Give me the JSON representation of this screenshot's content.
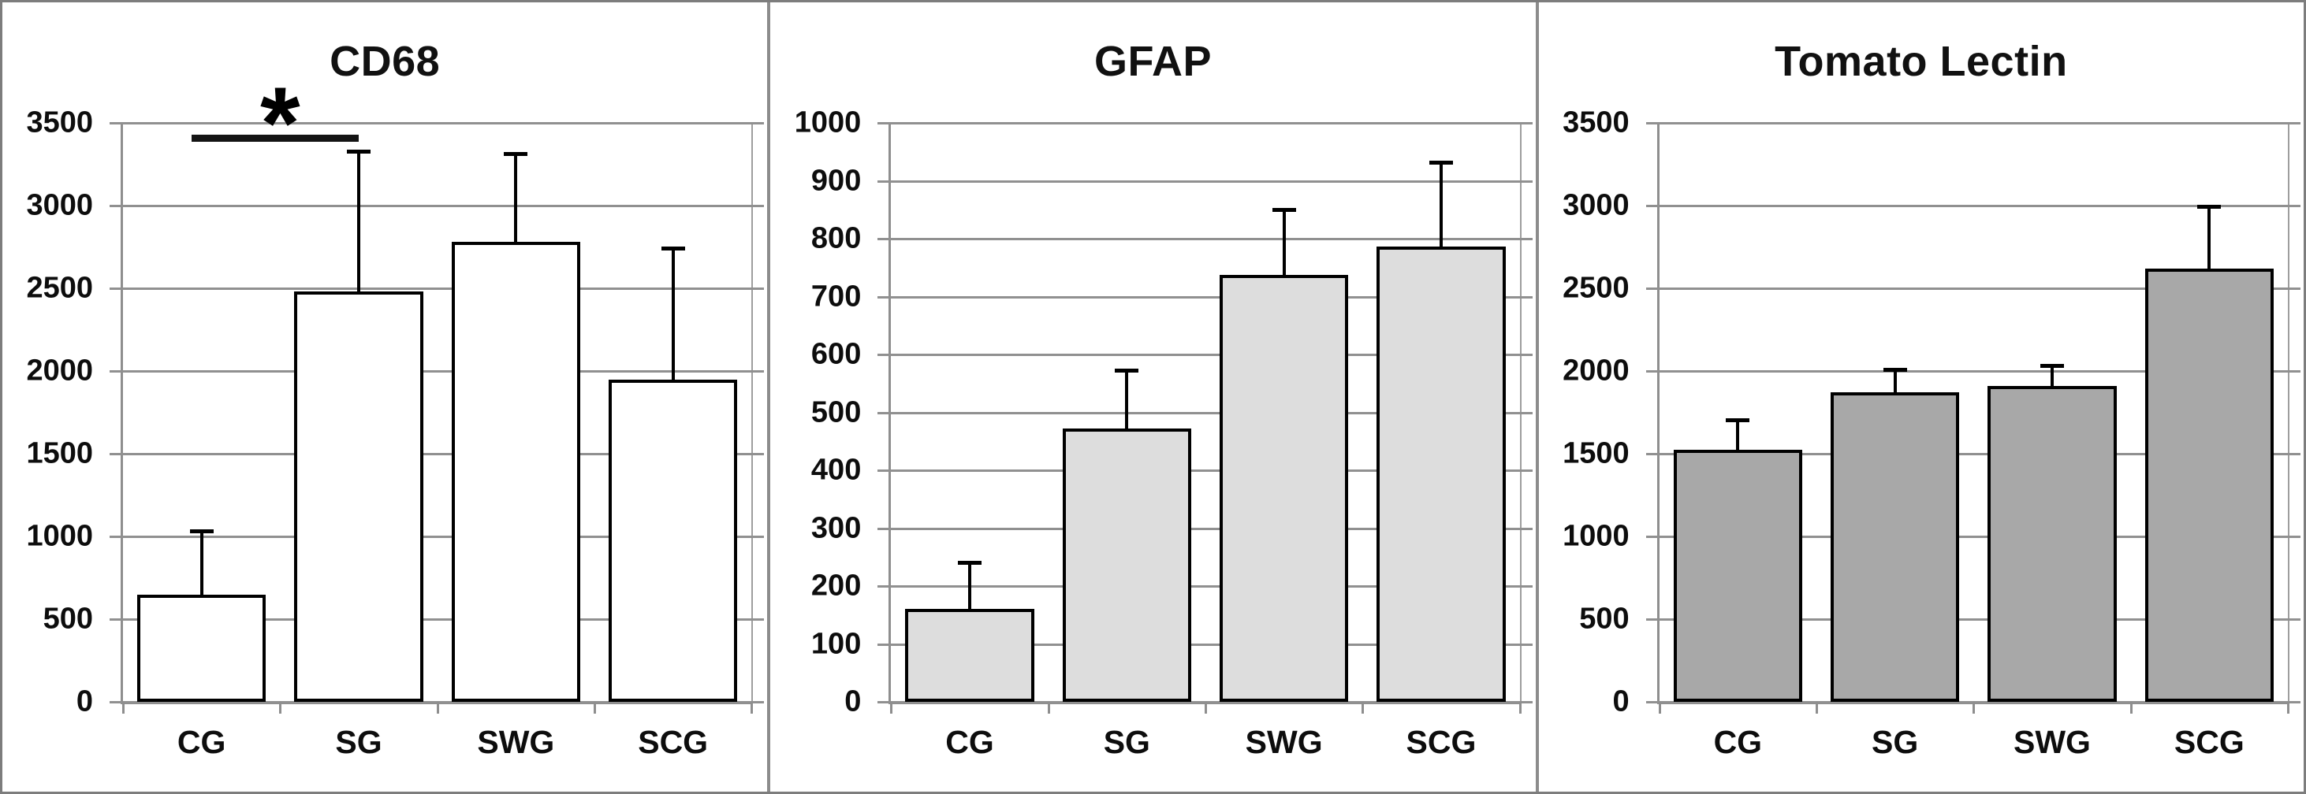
{
  "figure_caption": "",
  "styles": {
    "grid_color": "#909090",
    "axis_color": "#8e8e8e",
    "text_color": "#0d0d0d",
    "error_bar_color": "#000000",
    "significance_color": "#141414"
  },
  "chart_data": [
    {
      "type": "bar",
      "title": "CD68",
      "categories": [
        "CG",
        "SG",
        "SWG",
        "SCG"
      ],
      "values": [
        650,
        2480,
        2780,
        1950
      ],
      "error_plus": [
        380,
        845,
        530,
        790
      ],
      "ylim": [
        0,
        3500
      ],
      "ytick_step": 500,
      "y_tick_labels": [
        "0",
        "500",
        "1000",
        "1500",
        "2000",
        "2500",
        "3000",
        "3500"
      ],
      "xlabel": "",
      "ylabel": "",
      "grid": true,
      "legend": "none",
      "bar_fill": "#ffffff",
      "bar_border": "#000000",
      "annotation": {
        "label": "*",
        "between": [
          "CG",
          "SG"
        ],
        "from_index": 0,
        "to_index": 1,
        "at_value": 3430
      }
    },
    {
      "type": "bar",
      "title": "GFAP",
      "categories": [
        "CG",
        "SG",
        "SWG",
        "SCG"
      ],
      "values": [
        160,
        472,
        737,
        787
      ],
      "error_plus": [
        80,
        100,
        112,
        143
      ],
      "ylim": [
        0,
        1000
      ],
      "ytick_step": 100,
      "y_tick_labels": [
        "0",
        "100",
        "200",
        "300",
        "400",
        "500",
        "600",
        "700",
        "800",
        "900",
        "1000"
      ],
      "xlabel": "",
      "ylabel": "",
      "grid": true,
      "legend": "none",
      "bar_fill": "#dddddd",
      "bar_border": "#000000",
      "annotation": null
    },
    {
      "type": "bar",
      "title": "Tomato Lectin",
      "categories": [
        "CG",
        "SG",
        "SWG",
        "SCG"
      ],
      "values": [
        1525,
        1870,
        1910,
        2620
      ],
      "error_plus": [
        175,
        135,
        120,
        370
      ],
      "ylim": [
        0,
        3500
      ],
      "ytick_step": 500,
      "y_tick_labels": [
        "0",
        "500",
        "1000",
        "1500",
        "2000",
        "2500",
        "3000",
        "3500"
      ],
      "xlabel": "",
      "ylabel": "",
      "grid": true,
      "legend": "none",
      "bar_fill": "#a8a8a8",
      "bar_border": "#000000",
      "annotation": null
    }
  ]
}
